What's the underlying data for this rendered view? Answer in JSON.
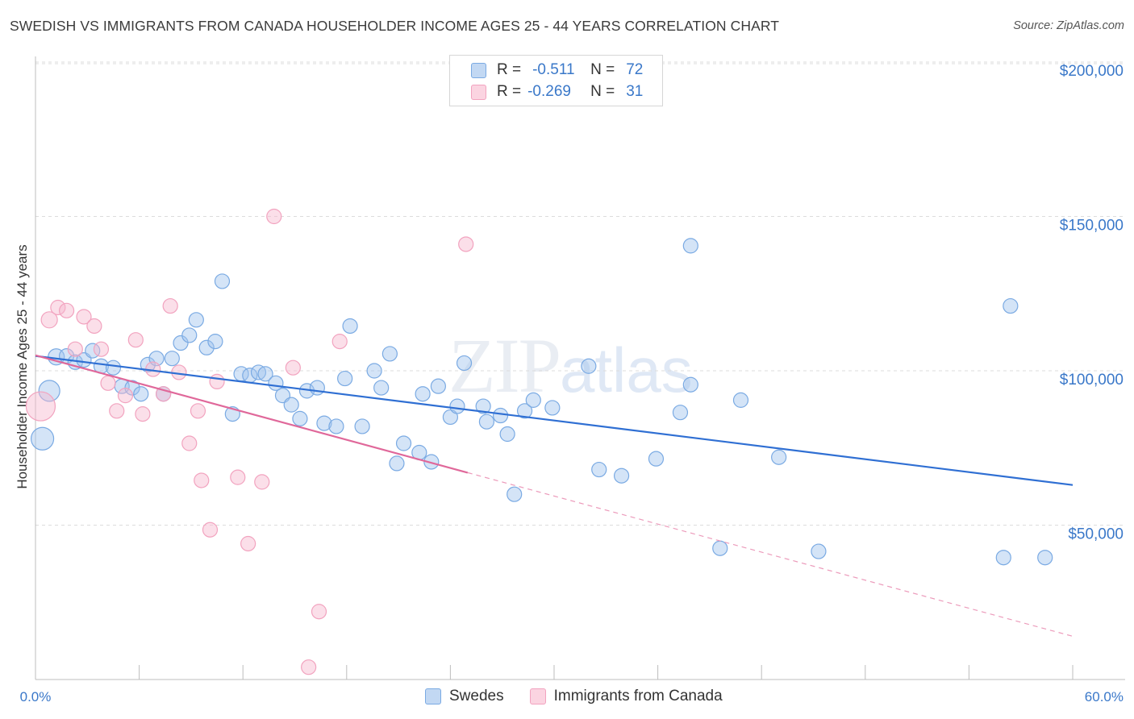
{
  "title": "SWEDISH VS IMMIGRANTS FROM CANADA HOUSEHOLDER INCOME AGES 25 - 44 YEARS CORRELATION CHART",
  "source": "Source: ZipAtlas.com",
  "watermark": {
    "zip": "ZIP",
    "atlas": "atlas"
  },
  "legend_stats": [
    {
      "r_label": "R =",
      "r_value": "-0.511",
      "n_label": "N =",
      "n_value": "72",
      "color": "#7aaae3"
    },
    {
      "r_label": "R =",
      "r_value": "-0.269",
      "n_label": "N =",
      "n_value": "31",
      "color": "#f2a3bf"
    }
  ],
  "chart_data": {
    "type": "scatter",
    "title": "SWEDISH VS IMMIGRANTS FROM CANADA HOUSEHOLDER INCOME AGES 25 - 44 YEARS CORRELATION CHART",
    "xlabel": "",
    "ylabel": "Householder Income Ages 25 - 44 years",
    "xlim": [
      0,
      60
    ],
    "ylim": [
      0,
      210000
    ],
    "x_tick_labels": [
      "0.0%",
      "60.0%"
    ],
    "y_ticks": [
      50000,
      100000,
      150000,
      200000
    ],
    "y_tick_labels": [
      "$50,000",
      "$100,000",
      "$150,000",
      "$200,000"
    ],
    "grid": true,
    "legend": "bottom-center",
    "series": [
      {
        "name": "Swedes",
        "color": "#7aaae3",
        "trend": {
          "x": [
            0,
            60
          ],
          "y": [
            104800,
            63000
          ],
          "dashed_extension": false
        },
        "points": [
          {
            "x": 0.4,
            "y": 78000,
            "s": 14
          },
          {
            "x": 0.8,
            "y": 93500,
            "s": 13
          },
          {
            "x": 1.2,
            "y": 104500,
            "s": 10
          },
          {
            "x": 1.8,
            "y": 104800,
            "s": 9
          },
          {
            "x": 2.3,
            "y": 102800,
            "s": 9
          },
          {
            "x": 2.8,
            "y": 103500,
            "s": 9
          },
          {
            "x": 3.3,
            "y": 106500,
            "s": 9
          },
          {
            "x": 3.8,
            "y": 101500,
            "s": 9
          },
          {
            "x": 4.5,
            "y": 101000,
            "s": 9
          },
          {
            "x": 5.0,
            "y": 95000,
            "s": 9
          },
          {
            "x": 5.6,
            "y": 94500,
            "s": 9
          },
          {
            "x": 6.1,
            "y": 92500,
            "s": 9
          },
          {
            "x": 6.5,
            "y": 102000,
            "s": 9
          },
          {
            "x": 7.0,
            "y": 104000,
            "s": 9
          },
          {
            "x": 7.4,
            "y": 92500,
            "s": 9
          },
          {
            "x": 7.9,
            "y": 104000,
            "s": 9
          },
          {
            "x": 8.4,
            "y": 109000,
            "s": 9
          },
          {
            "x": 8.9,
            "y": 111500,
            "s": 9
          },
          {
            "x": 9.3,
            "y": 116500,
            "s": 9
          },
          {
            "x": 9.9,
            "y": 107500,
            "s": 9
          },
          {
            "x": 10.4,
            "y": 109500,
            "s": 9
          },
          {
            "x": 10.8,
            "y": 129000,
            "s": 9
          },
          {
            "x": 11.4,
            "y": 86000,
            "s": 9
          },
          {
            "x": 11.9,
            "y": 99000,
            "s": 9
          },
          {
            "x": 12.4,
            "y": 98500,
            "s": 9
          },
          {
            "x": 12.9,
            "y": 99500,
            "s": 9
          },
          {
            "x": 13.3,
            "y": 99000,
            "s": 9
          },
          {
            "x": 13.9,
            "y": 96000,
            "s": 9
          },
          {
            "x": 14.3,
            "y": 92000,
            "s": 9
          },
          {
            "x": 14.8,
            "y": 89000,
            "s": 9
          },
          {
            "x": 15.3,
            "y": 84500,
            "s": 9
          },
          {
            "x": 15.7,
            "y": 93500,
            "s": 9
          },
          {
            "x": 16.3,
            "y": 94500,
            "s": 9
          },
          {
            "x": 16.7,
            "y": 83000,
            "s": 9
          },
          {
            "x": 17.4,
            "y": 82000,
            "s": 9
          },
          {
            "x": 17.9,
            "y": 97500,
            "s": 9
          },
          {
            "x": 18.2,
            "y": 114500,
            "s": 9
          },
          {
            "x": 18.9,
            "y": 82000,
            "s": 9
          },
          {
            "x": 19.6,
            "y": 100000,
            "s": 9
          },
          {
            "x": 20.0,
            "y": 94500,
            "s": 9
          },
          {
            "x": 20.5,
            "y": 105500,
            "s": 9
          },
          {
            "x": 20.9,
            "y": 70000,
            "s": 9
          },
          {
            "x": 21.3,
            "y": 76500,
            "s": 9
          },
          {
            "x": 22.2,
            "y": 73500,
            "s": 9
          },
          {
            "x": 22.4,
            "y": 92500,
            "s": 9
          },
          {
            "x": 22.9,
            "y": 70500,
            "s": 9
          },
          {
            "x": 23.3,
            "y": 95000,
            "s": 9
          },
          {
            "x": 24.0,
            "y": 85000,
            "s": 9
          },
          {
            "x": 24.4,
            "y": 88500,
            "s": 9
          },
          {
            "x": 24.8,
            "y": 102500,
            "s": 9
          },
          {
            "x": 25.9,
            "y": 88500,
            "s": 9
          },
          {
            "x": 26.1,
            "y": 83500,
            "s": 9
          },
          {
            "x": 26.9,
            "y": 85500,
            "s": 9
          },
          {
            "x": 27.3,
            "y": 79500,
            "s": 9
          },
          {
            "x": 27.7,
            "y": 60000,
            "s": 9
          },
          {
            "x": 28.3,
            "y": 87000,
            "s": 9
          },
          {
            "x": 28.8,
            "y": 90500,
            "s": 9
          },
          {
            "x": 29.9,
            "y": 88000,
            "s": 9
          },
          {
            "x": 32.0,
            "y": 101500,
            "s": 9
          },
          {
            "x": 32.6,
            "y": 68000,
            "s": 9
          },
          {
            "x": 33.9,
            "y": 66000,
            "s": 9
          },
          {
            "x": 35.9,
            "y": 71500,
            "s": 9
          },
          {
            "x": 37.3,
            "y": 86500,
            "s": 9
          },
          {
            "x": 37.9,
            "y": 95500,
            "s": 9
          },
          {
            "x": 37.9,
            "y": 140500,
            "s": 9
          },
          {
            "x": 39.6,
            "y": 42500,
            "s": 9
          },
          {
            "x": 40.8,
            "y": 90500,
            "s": 9
          },
          {
            "x": 43.0,
            "y": 72000,
            "s": 9
          },
          {
            "x": 45.3,
            "y": 41500,
            "s": 9
          },
          {
            "x": 56.0,
            "y": 39500,
            "s": 9
          },
          {
            "x": 56.4,
            "y": 121000,
            "s": 9
          },
          {
            "x": 58.4,
            "y": 39500,
            "s": 9
          }
        ]
      },
      {
        "name": "Immigrants from Canada",
        "color": "#f2a3bf",
        "trend": {
          "x": [
            0,
            25
          ],
          "y": [
            105000,
            67000
          ],
          "dashed_to": {
            "x": 60,
            "y": 14000
          }
        },
        "points": [
          {
            "x": 0.3,
            "y": 88500,
            "s": 18
          },
          {
            "x": 0.8,
            "y": 116500,
            "s": 10
          },
          {
            "x": 1.3,
            "y": 120500,
            "s": 9
          },
          {
            "x": 1.8,
            "y": 119500,
            "s": 9
          },
          {
            "x": 2.3,
            "y": 107000,
            "s": 9
          },
          {
            "x": 2.8,
            "y": 117500,
            "s": 9
          },
          {
            "x": 3.4,
            "y": 114500,
            "s": 9
          },
          {
            "x": 3.8,
            "y": 107000,
            "s": 9
          },
          {
            "x": 4.2,
            "y": 96000,
            "s": 9
          },
          {
            "x": 4.7,
            "y": 87000,
            "s": 9
          },
          {
            "x": 5.2,
            "y": 92000,
            "s": 9
          },
          {
            "x": 5.8,
            "y": 110000,
            "s": 9
          },
          {
            "x": 6.2,
            "y": 86000,
            "s": 9
          },
          {
            "x": 6.8,
            "y": 100500,
            "s": 9
          },
          {
            "x": 7.4,
            "y": 92500,
            "s": 9
          },
          {
            "x": 7.8,
            "y": 121000,
            "s": 9
          },
          {
            "x": 8.3,
            "y": 99500,
            "s": 9
          },
          {
            "x": 8.9,
            "y": 76500,
            "s": 9
          },
          {
            "x": 9.4,
            "y": 87000,
            "s": 9
          },
          {
            "x": 9.6,
            "y": 64500,
            "s": 9
          },
          {
            "x": 10.1,
            "y": 48500,
            "s": 9
          },
          {
            "x": 10.5,
            "y": 96500,
            "s": 9
          },
          {
            "x": 11.7,
            "y": 65500,
            "s": 9
          },
          {
            "x": 12.3,
            "y": 44000,
            "s": 9
          },
          {
            "x": 13.1,
            "y": 64000,
            "s": 9
          },
          {
            "x": 13.8,
            "y": 150000,
            "s": 9
          },
          {
            "x": 14.9,
            "y": 101000,
            "s": 9
          },
          {
            "x": 15.8,
            "y": 4000,
            "s": 9
          },
          {
            "x": 16.4,
            "y": 22000,
            "s": 9
          },
          {
            "x": 17.6,
            "y": 109500,
            "s": 9
          },
          {
            "x": 24.9,
            "y": 141000,
            "s": 9
          }
        ]
      }
    ]
  }
}
